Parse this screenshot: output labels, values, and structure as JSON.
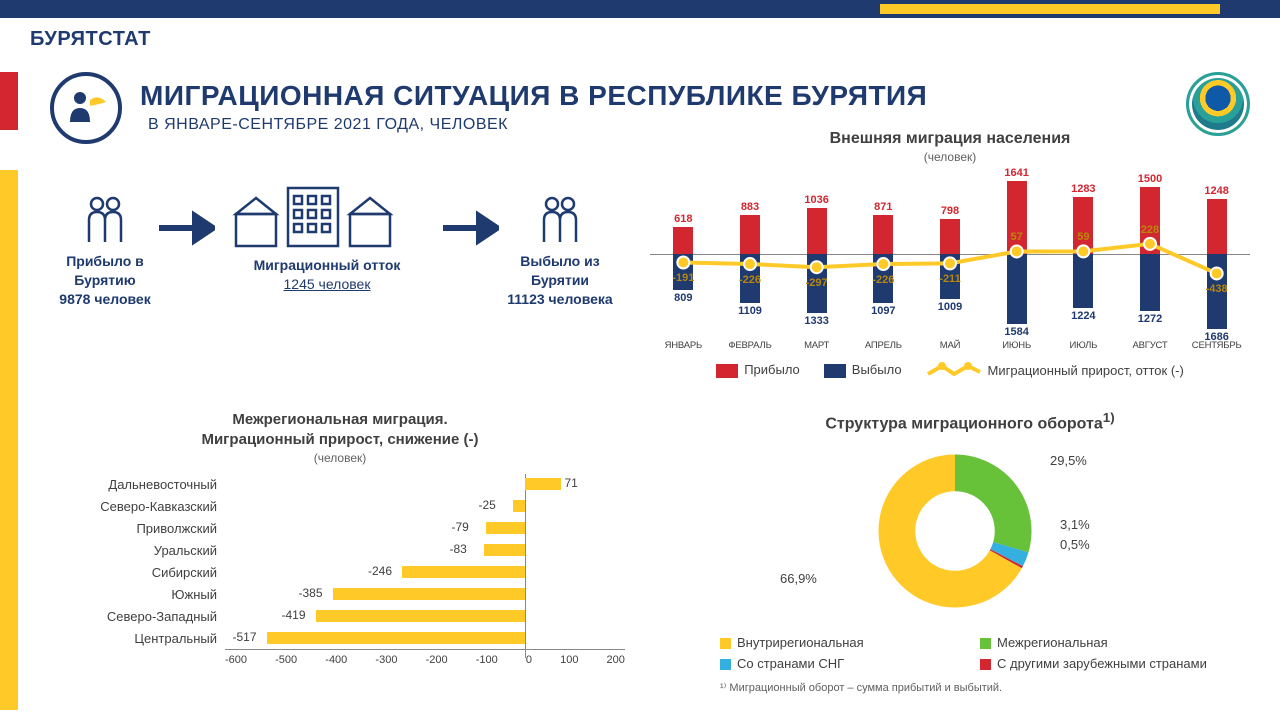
{
  "brand": "БУРЯТСТАТ",
  "title": "МИГРАЦИОННАЯ СИТУАЦИЯ В РЕСПУБЛИКЕ БУРЯТИЯ",
  "subtitle": "В ЯНВАРЕ-СЕНТЯБРЕ 2021 ГОДА, ЧЕЛОВЕК",
  "colors": {
    "navy": "#1f3a6e",
    "red": "#d22730",
    "yellow": "#ffc928",
    "green": "#67c23a",
    "cyan": "#33b0df",
    "grey_text": "#404040"
  },
  "flow": {
    "arrived_label": "Прибыло в Бурятию",
    "arrived_value": "9878 человек",
    "outflow_label": "Миграционный  отток",
    "outflow_value": "1245  человек",
    "left_label": "Выбыло из Бурятии",
    "left_value": "11123 человека"
  },
  "chart1": {
    "type": "bar+line",
    "title": "Внешняя миграция населения",
    "unit": "(человек)",
    "months": [
      "ЯНВАРЬ",
      "ФЕВРАЛЬ",
      "МАРТ",
      "АПРЕЛЬ",
      "МАЙ",
      "ИЮНЬ",
      "ИЮЛЬ",
      "АВГУСТ",
      "СЕНТЯБРЬ"
    ],
    "arrived": [
      618,
      883,
      1036,
      871,
      798,
      1641,
      1283,
      1500,
      1248
    ],
    "departed": [
      809,
      1109,
      1333,
      1097,
      1009,
      1584,
      1224,
      1272,
      1686
    ],
    "net": [
      -191,
      -226,
      -297,
      -226,
      -211,
      57,
      59,
      228,
      -438
    ],
    "bar_colors": {
      "arrived": "#d22730",
      "departed": "#1f3a6e"
    },
    "line_color": "#ffc928",
    "marker_fill": "#ffc928",
    "marker_stroke": "#ffffff",
    "max_abs": 1800,
    "legend": {
      "a": "Прибыло",
      "b": "Выбыло",
      "c": "Миграционный прирост, отток (-)"
    }
  },
  "chart2": {
    "type": "hbar",
    "title_l1": "Межрегиональная миграция.",
    "title_l2": "Миграционный прирост, снижение (-)",
    "unit": "(человек)",
    "categories": [
      "Дальневосточный",
      "Северо-Кавказский",
      "Приволжский",
      "Уральский",
      "Сибирский",
      "Южный",
      "Северо-Западный",
      "Центральный"
    ],
    "values": [
      71,
      -25,
      -79,
      -83,
      -246,
      -385,
      -419,
      -517
    ],
    "bar_color": "#ffc928",
    "xmin": -600,
    "xmax": 200,
    "xstep": 100,
    "xticks": [
      "-600",
      "-500",
      "-400",
      "-300",
      "-200",
      "-100",
      "0",
      "100",
      "200"
    ]
  },
  "chart3": {
    "type": "donut",
    "title": "Структура миграционного оборота",
    "superscript": "1)",
    "segments": [
      {
        "label": "Внутрирегиональная",
        "value": 66.9,
        "color": "#ffc928",
        "val_text": "66,9%"
      },
      {
        "label": "Межрегиональная",
        "value": 29.5,
        "color": "#67c23a",
        "val_text": "29,5%"
      },
      {
        "label": "Со странами СНГ",
        "value": 3.1,
        "color": "#33b0df",
        "val_text": "3,1%"
      },
      {
        "label": "С другими зарубежными странами",
        "value": 0.5,
        "color": "#d22730",
        "val_text": "0,5%"
      }
    ],
    "inner_radius_pct": 52,
    "footnote": "¹⁾ Миграционный  оборот – сумма прибытий  и выбытий."
  }
}
